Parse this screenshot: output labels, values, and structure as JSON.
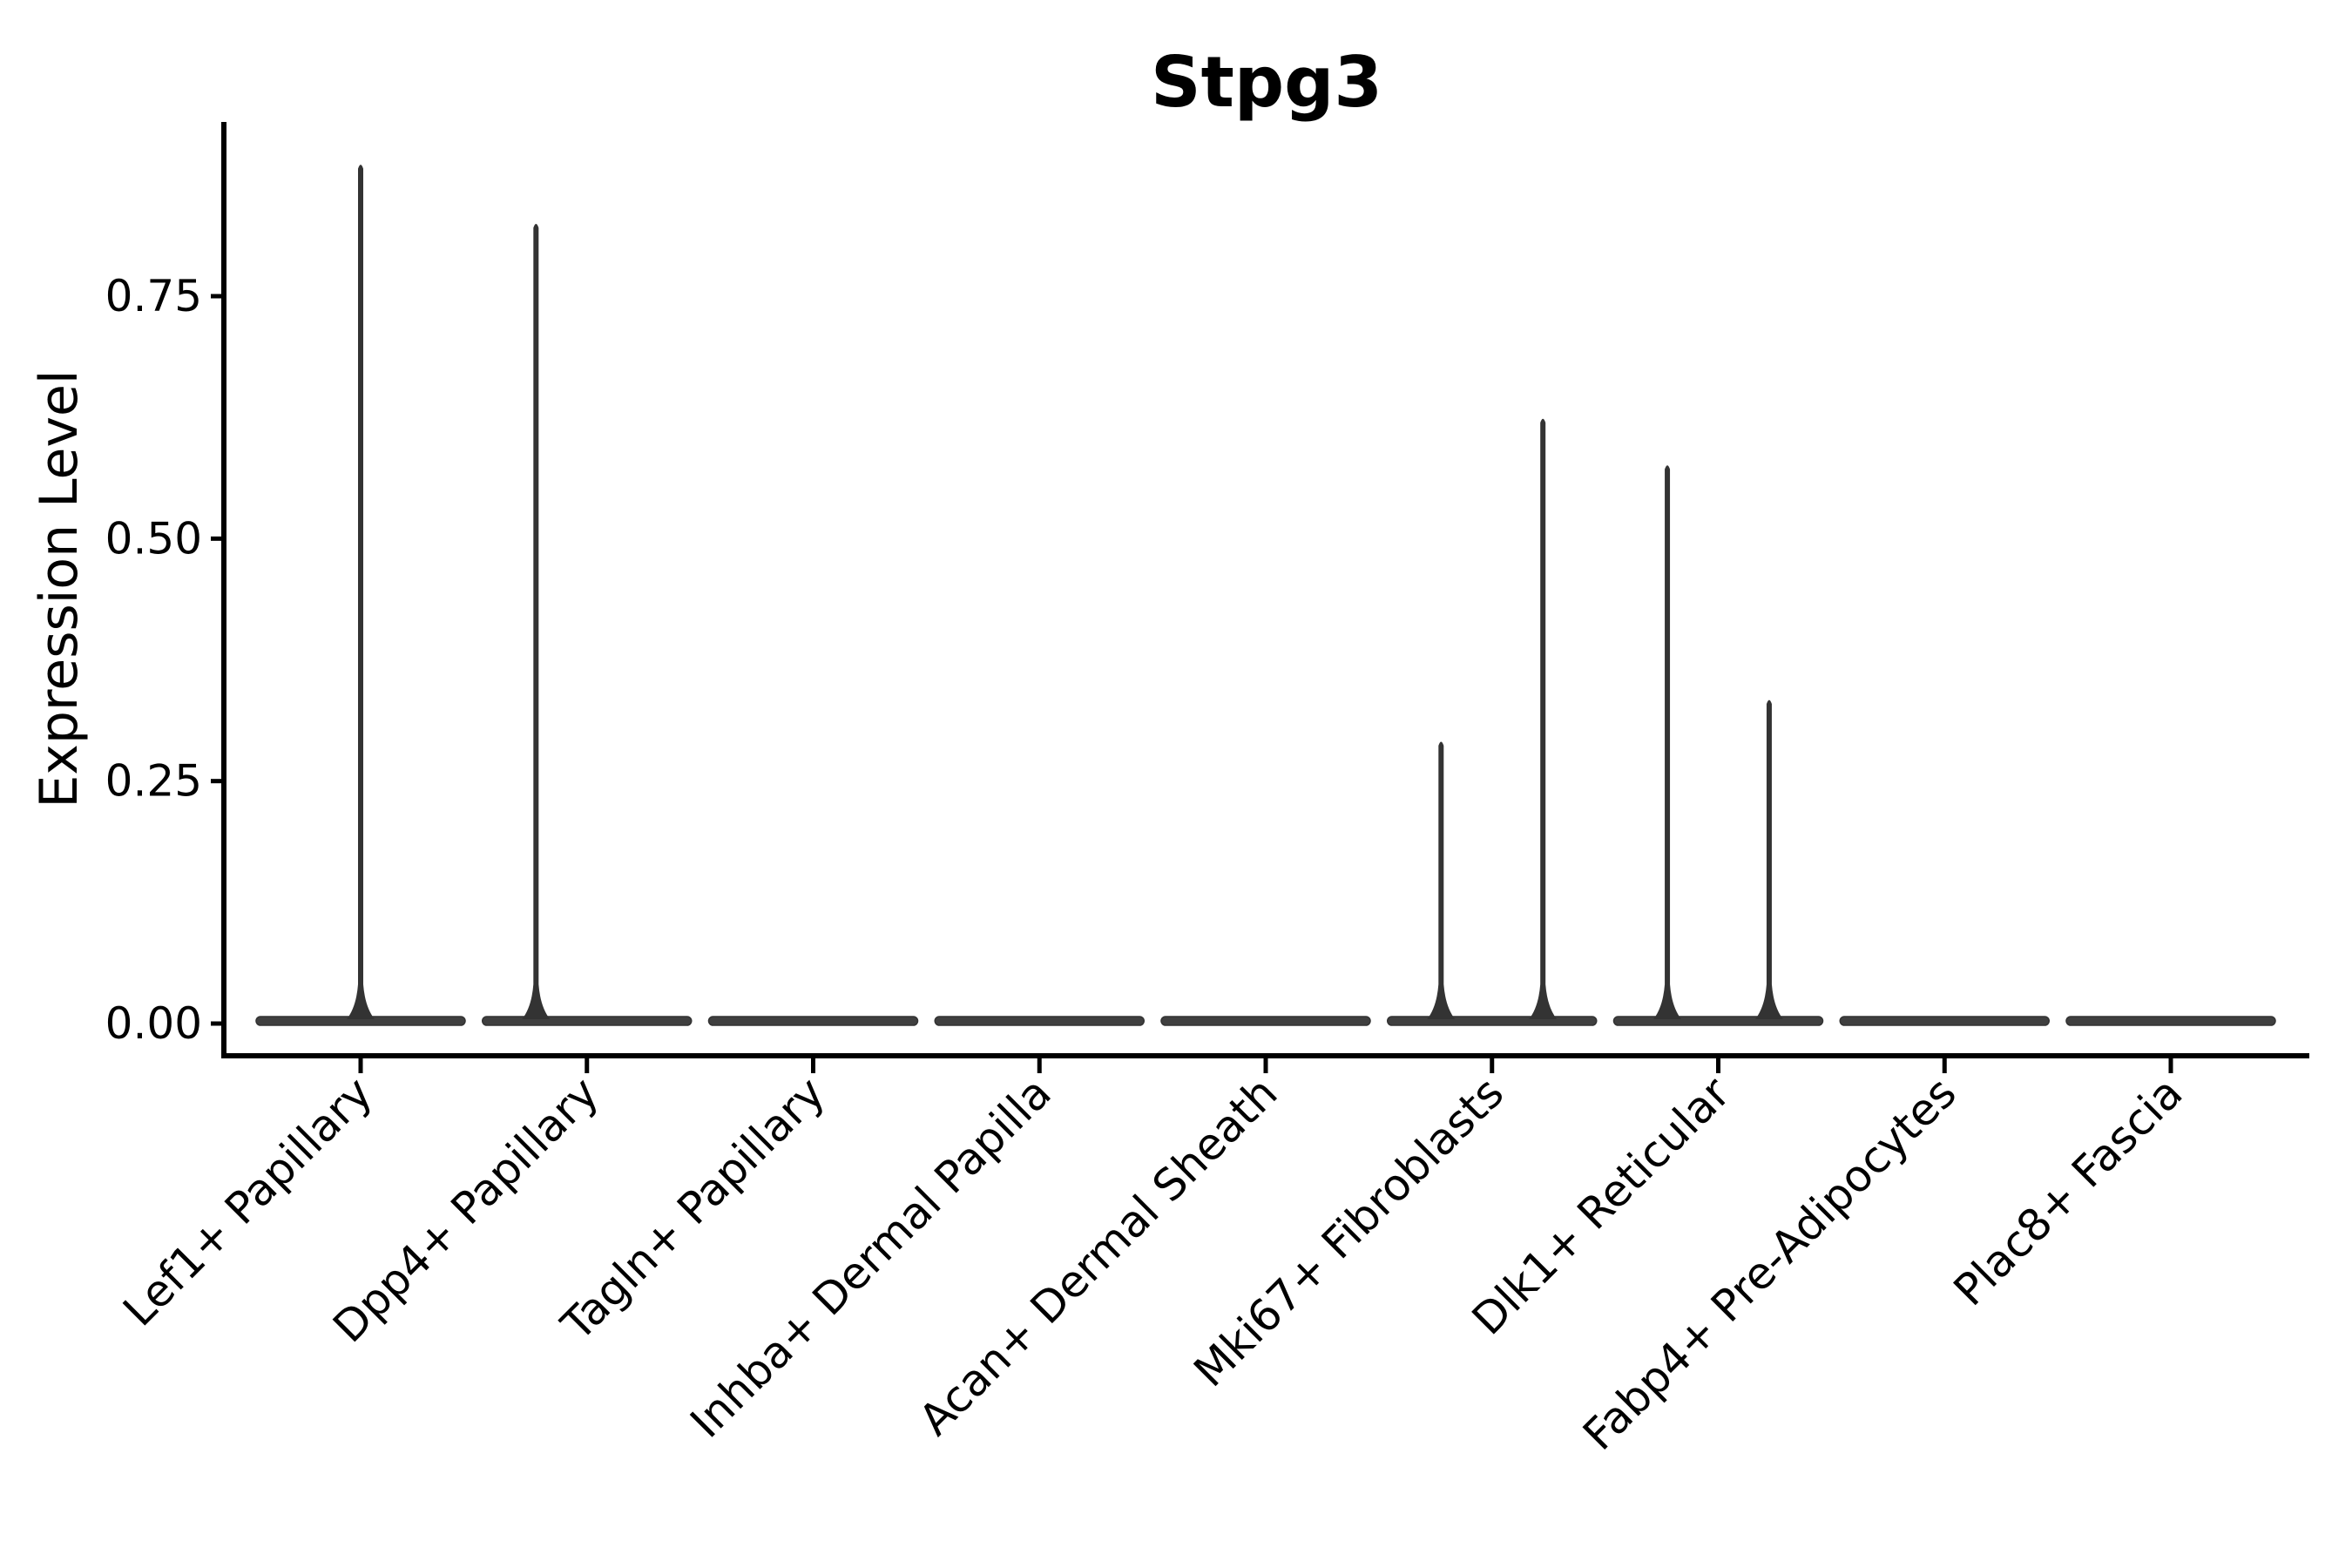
{
  "title": "Stpg3",
  "chart_data": {
    "type": "violin",
    "title": "Stpg3",
    "xlabel": "",
    "ylabel": "Expression Level",
    "ylim": [
      0,
      0.93
    ],
    "grid": false,
    "legend_position": "none",
    "yticks": [
      {
        "label": "0.00",
        "value": 0.0
      },
      {
        "label": "0.25",
        "value": 0.25
      },
      {
        "label": "0.50",
        "value": 0.5
      },
      {
        "label": "0.75",
        "value": 0.75
      }
    ],
    "categories": [
      "Lef1+ Papillary",
      "Dpp4+ Papillary",
      "Tagln+ Papillary",
      "Inhba+ Dermal Papilla",
      "Acan+ Dermal Sheath",
      "Mki67+ Fibroblasts",
      "Dlk1+ Reticular",
      "Fabp4+ Pre-Adipocytes",
      "Plac8+ Fascia"
    ],
    "violins": [
      {
        "category": "Lef1+ Papillary",
        "baseline_value": 0,
        "spikes": [
          {
            "offset_frac": 0.0,
            "max": 0.886
          }
        ]
      },
      {
        "category": "Dpp4+ Papillary",
        "baseline_value": 0,
        "spikes": [
          {
            "offset_frac": -0.225,
            "max": 0.825
          }
        ]
      },
      {
        "category": "Tagln+ Papillary",
        "baseline_value": 0,
        "spikes": []
      },
      {
        "category": "Inhba+ Dermal Papilla",
        "baseline_value": 0,
        "spikes": []
      },
      {
        "category": "Acan+ Dermal Sheath",
        "baseline_value": 0,
        "spikes": []
      },
      {
        "category": "Mki67+ Fibroblasts",
        "baseline_value": 0,
        "spikes": [
          {
            "offset_frac": -0.225,
            "max": 0.291
          },
          {
            "offset_frac": 0.225,
            "max": 0.624
          }
        ]
      },
      {
        "category": "Dlk1+ Reticular",
        "baseline_value": 0,
        "spikes": [
          {
            "offset_frac": -0.225,
            "max": 0.576
          },
          {
            "offset_frac": 0.225,
            "max": 0.334
          }
        ]
      },
      {
        "category": "Fabp4+ Pre-Adipocytes",
        "baseline_value": 0,
        "spikes": []
      },
      {
        "category": "Plac8+ Fascia",
        "baseline_value": 0,
        "spikes": []
      }
    ],
    "colors": {
      "violin_fill": "#3f3f3f",
      "violin_stroke": "#333333",
      "axis": "#000000",
      "text": "#000000",
      "background": "#ffffff"
    }
  }
}
